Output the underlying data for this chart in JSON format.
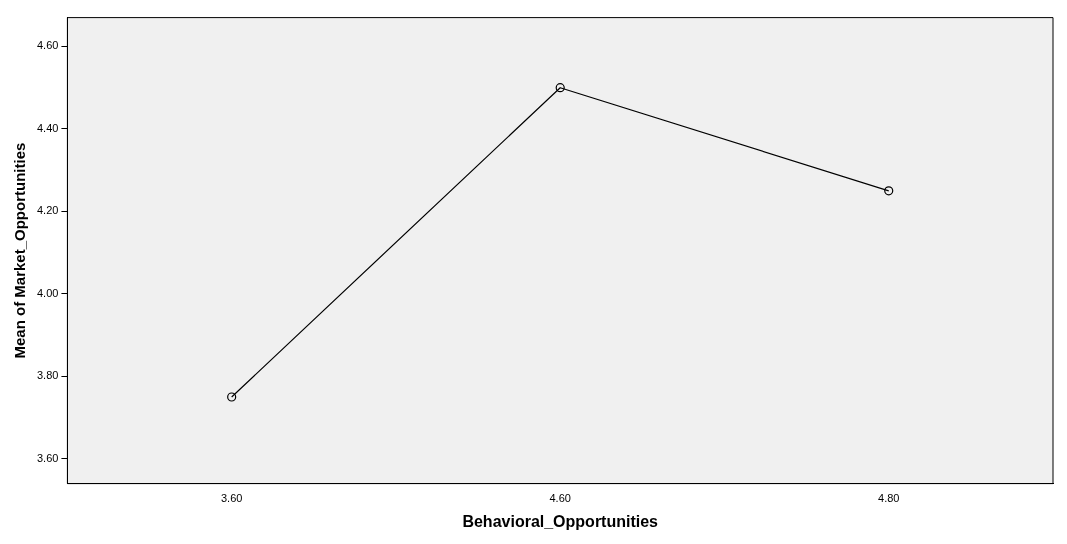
{
  "chart_data": {
    "type": "line",
    "xlabel": "Behavioral_Opportunities",
    "ylabel": "Mean of Market_Opportunities",
    "categories": [
      "3.60",
      "4.60",
      "4.80"
    ],
    "values": [
      3.75,
      4.5,
      4.25
    ],
    "color": "#000000",
    "ylim": [
      3.54,
      4.67
    ],
    "yticks": [
      {
        "value": 3.6,
        "label": "3.60"
      },
      {
        "value": 3.8,
        "label": "3.80"
      },
      {
        "value": 4.0,
        "label": "4.00"
      },
      {
        "value": 4.2,
        "label": "4.20"
      },
      {
        "value": 4.4,
        "label": "4.40"
      },
      {
        "value": 4.6,
        "label": "4.60"
      }
    ],
    "marker": "circle",
    "line_style": "solid",
    "grid": false,
    "legend": false
  }
}
